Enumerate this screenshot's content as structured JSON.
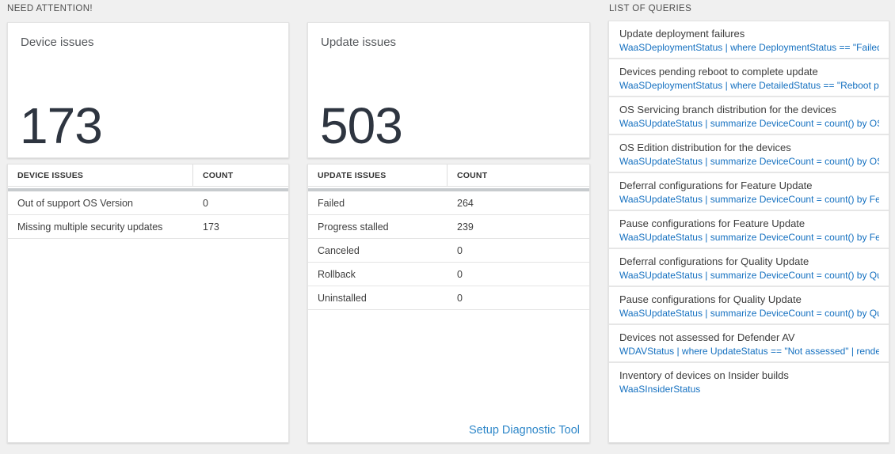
{
  "colors": {
    "number_dark": "#2e3540",
    "header_bar_gray": "#c7cbce",
    "link_blue": "#2e87c9",
    "query_blue": "#1470c0"
  },
  "need_attention": {
    "header": "NEED ATTENTION!",
    "device_card": {
      "title": "Device issues",
      "total": "173",
      "columns": [
        "DEVICE ISSUES",
        "COUNT"
      ],
      "rows": [
        {
          "label": "Out of support OS Version",
          "count": "0"
        },
        {
          "label": "Missing multiple security updates",
          "count": "173"
        }
      ]
    },
    "update_card": {
      "title": "Update issues",
      "total": "503",
      "columns": [
        "UPDATE ISSUES",
        "COUNT"
      ],
      "rows": [
        {
          "label": "Failed",
          "count": "264"
        },
        {
          "label": "Progress stalled",
          "count": "239"
        },
        {
          "label": "Canceled",
          "count": "0"
        },
        {
          "label": "Rollback",
          "count": "0"
        },
        {
          "label": "Uninstalled",
          "count": "0"
        }
      ],
      "footer_link": "Setup Diagnostic Tool"
    }
  },
  "queries": {
    "header": "LIST OF QUERIES",
    "items": [
      {
        "title": "Update deployment failures",
        "query": "WaaSDeploymentStatus | where DeploymentStatus == \"Failed\" |..."
      },
      {
        "title": "Devices pending reboot to complete update",
        "query": "WaaSDeploymentStatus | where DetailedStatus == \"Reboot pend..."
      },
      {
        "title": "OS Servicing branch distribution for the devices",
        "query": "WaaSUpdateStatus | summarize DeviceCount = count() by OSSer..."
      },
      {
        "title": "OS Edition distribution for the devices",
        "query": "WaaSUpdateStatus | summarize DeviceCount = count() by OSEdit..."
      },
      {
        "title": "Deferral configurations for Feature Update",
        "query": "WaaSUpdateStatus | summarize DeviceCount = count() by Featur..."
      },
      {
        "title": "Pause configurations for Feature Update",
        "query": "WaaSUpdateStatus | summarize DeviceCount = count() by Featur..."
      },
      {
        "title": "Deferral configurations for Quality Update",
        "query": "WaaSUpdateStatus | summarize DeviceCount = count() by Qualit..."
      },
      {
        "title": "Pause configurations for Quality Update",
        "query": "WaaSUpdateStatus | summarize DeviceCount = count() by Qualit..."
      },
      {
        "title": "Devices not assessed for Defender AV",
        "query": "WDAVStatus | where UpdateStatus == \"Not assessed\" | render ta..."
      },
      {
        "title": "Inventory of devices on Insider builds",
        "query": "WaaSInsiderStatus"
      }
    ]
  }
}
